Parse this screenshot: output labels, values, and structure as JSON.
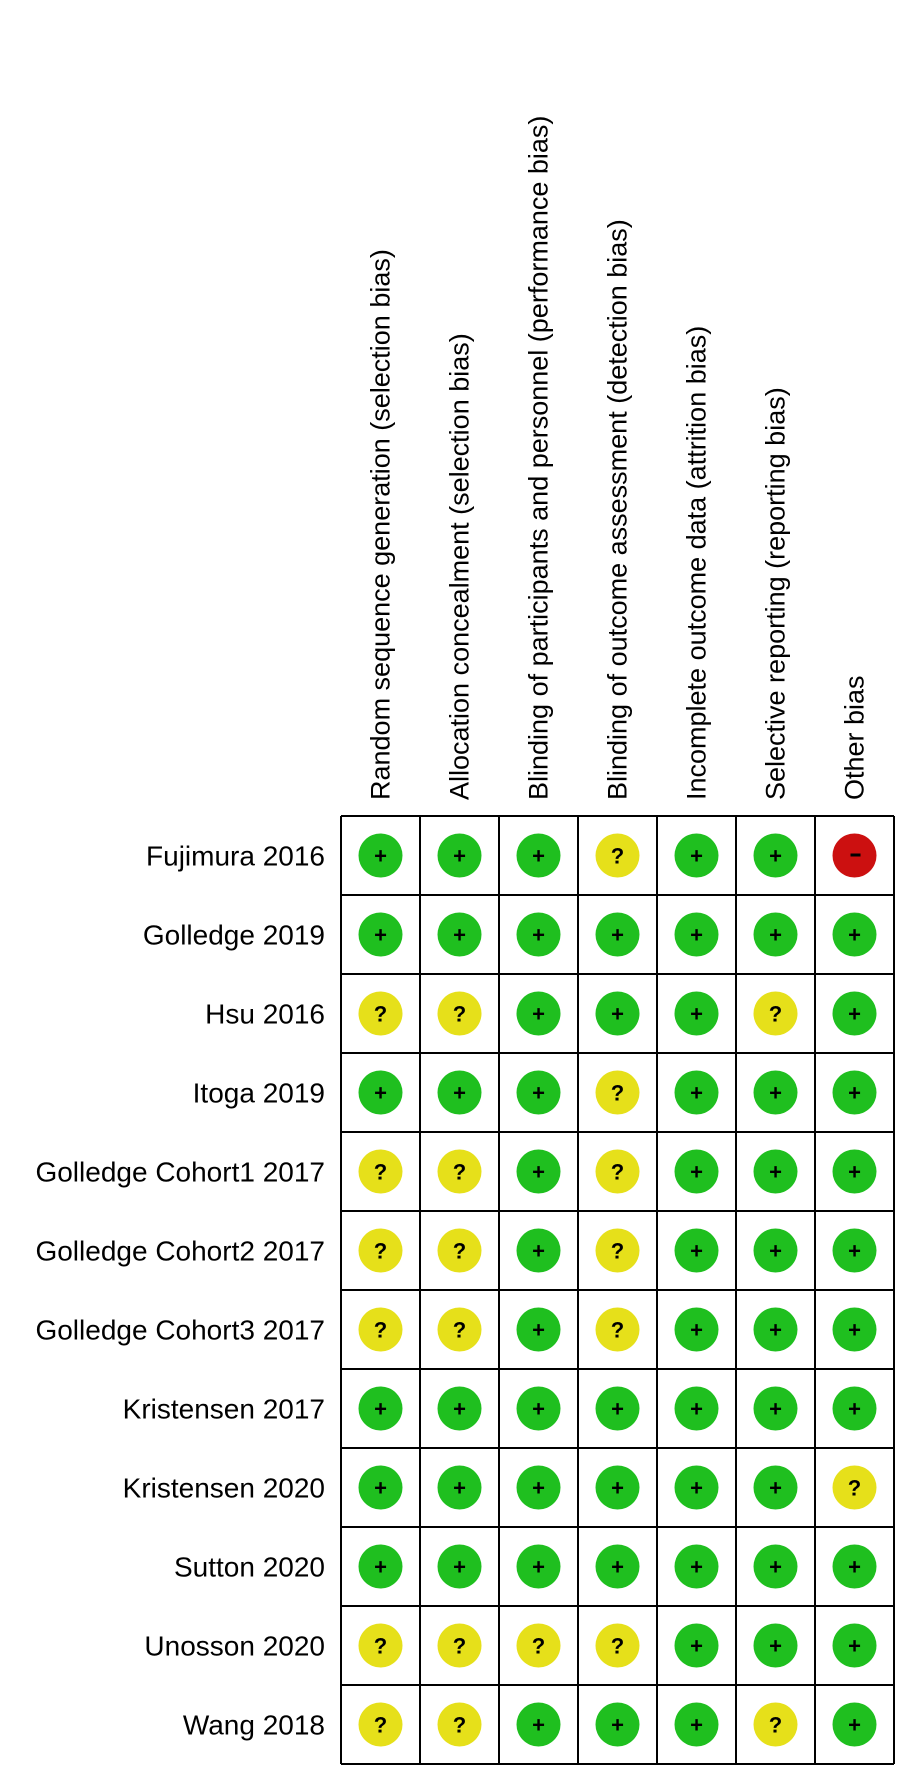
{
  "chart_data": {
    "type": "table",
    "columns": [
      "Random sequence generation (selection bias)",
      "Allocation concealment (selection bias)",
      "Blinding of participants and personnel (performance bias)",
      "Blinding of outcome assessment (detection bias)",
      "Incomplete outcome data (attrition bias)",
      "Selective reporting (reporting bias)",
      "Other bias"
    ],
    "rows": [
      "Fujimura 2016",
      "Golledge 2019",
      "Hsu 2016",
      "Itoga 2019",
      "Golledge Cohort1 2017",
      "Golledge Cohort2 2017",
      "Golledge Cohort3 2017",
      "Kristensen 2017",
      "Kristensen 2020",
      "Sutton 2020",
      "Unosson 2020",
      "Wang 2018"
    ],
    "values": [
      [
        "+",
        "+",
        "+",
        "?",
        "+",
        "+",
        "-"
      ],
      [
        "+",
        "+",
        "+",
        "+",
        "+",
        "+",
        "+"
      ],
      [
        "?",
        "?",
        "+",
        "+",
        "+",
        "?",
        "+"
      ],
      [
        "+",
        "+",
        "+",
        "?",
        "+",
        "+",
        "+"
      ],
      [
        "?",
        "?",
        "+",
        "?",
        "+",
        "+",
        "+"
      ],
      [
        "?",
        "?",
        "+",
        "?",
        "+",
        "+",
        "+"
      ],
      [
        "?",
        "?",
        "+",
        "?",
        "+",
        "+",
        "+"
      ],
      [
        "+",
        "+",
        "+",
        "+",
        "+",
        "+",
        "+"
      ],
      [
        "+",
        "+",
        "+",
        "+",
        "+",
        "+",
        "?"
      ],
      [
        "+",
        "+",
        "+",
        "+",
        "+",
        "+",
        "+"
      ],
      [
        "?",
        "?",
        "?",
        "?",
        "+",
        "+",
        "+"
      ],
      [
        "?",
        "?",
        "+",
        "+",
        "+",
        "?",
        "+"
      ]
    ],
    "judgement_colors": {
      "+": "#1fbf1f",
      "?": "#e6e01a",
      "-": "#cc1010"
    }
  }
}
